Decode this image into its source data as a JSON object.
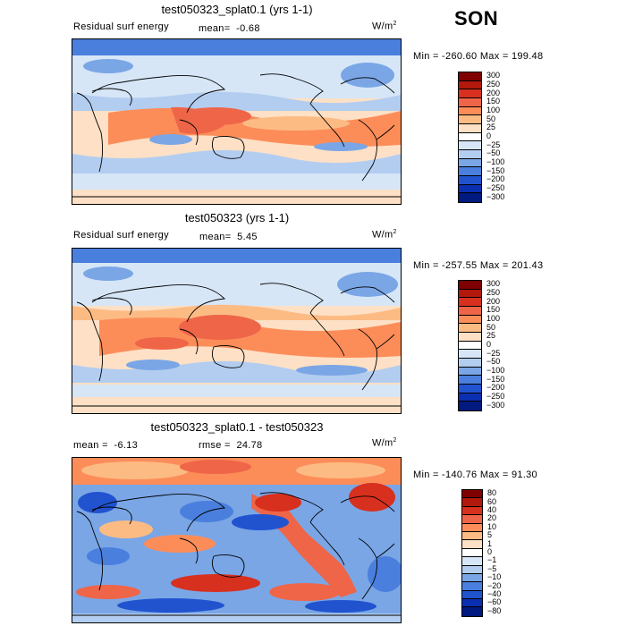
{
  "season": "SON",
  "panels": [
    {
      "title": "test050323_splat0.1 (yrs 1-1)",
      "left_label": "Residual surf energy",
      "stat_label": "mean=",
      "stat_value": "-0.68",
      "units": "W/m",
      "units_sup": "2",
      "minmax": "Min = -260.60  Max = 199.48",
      "levels": [
        "300",
        "250",
        "200",
        "150",
        "100",
        "50",
        "25",
        "0",
        "-25",
        "-50",
        "-100",
        "-150",
        "-200",
        "-250",
        "-300"
      ],
      "colors": [
        "#7f0000",
        "#b2180c",
        "#d7301f",
        "#ef6548",
        "#fc8d59",
        "#fdbb84",
        "#fde0c5",
        "#ffffff",
        "#d6e6f7",
        "#b3cdf0",
        "#7aa6e6",
        "#4a7fde",
        "#2153cf",
        "#0a2fb0",
        "#001a80"
      ]
    },
    {
      "title": "test050323 (yrs 1-1)",
      "left_label": "Residual surf energy",
      "stat_label": "mean=",
      "stat_value": "5.45",
      "units": "W/m",
      "units_sup": "2",
      "minmax": "Min = -257.55  Max = 201.43",
      "levels": [
        "300",
        "250",
        "200",
        "150",
        "100",
        "50",
        "25",
        "0",
        "-25",
        "-50",
        "-100",
        "-150",
        "-200",
        "-250",
        "-300"
      ],
      "colors": [
        "#7f0000",
        "#b2180c",
        "#d7301f",
        "#ef6548",
        "#fc8d59",
        "#fdbb84",
        "#fde0c5",
        "#ffffff",
        "#d6e6f7",
        "#b3cdf0",
        "#7aa6e6",
        "#4a7fde",
        "#2153cf",
        "#0a2fb0",
        "#001a80"
      ]
    },
    {
      "title": "test050323_splat0.1 - test050323",
      "left_label": "mean =",
      "left_value": "-6.13",
      "stat_label": "rmse =",
      "stat_value": "24.78",
      "units": "W/m",
      "units_sup": "2",
      "minmax": "Min = -140.76  Max =  91.30",
      "levels": [
        "80",
        "60",
        "40",
        "20",
        "10",
        "5",
        "1",
        "0",
        "-1",
        "-5",
        "-10",
        "-20",
        "-40",
        "-60",
        "-80"
      ],
      "colors": [
        "#7f0000",
        "#b2180c",
        "#d7301f",
        "#ef6548",
        "#fc8d59",
        "#fdbb84",
        "#fde0c5",
        "#ffffff",
        "#d6e6f7",
        "#b3cdf0",
        "#7aa6e6",
        "#4a7fde",
        "#2153cf",
        "#0a2fb0",
        "#001a80"
      ]
    }
  ]
}
